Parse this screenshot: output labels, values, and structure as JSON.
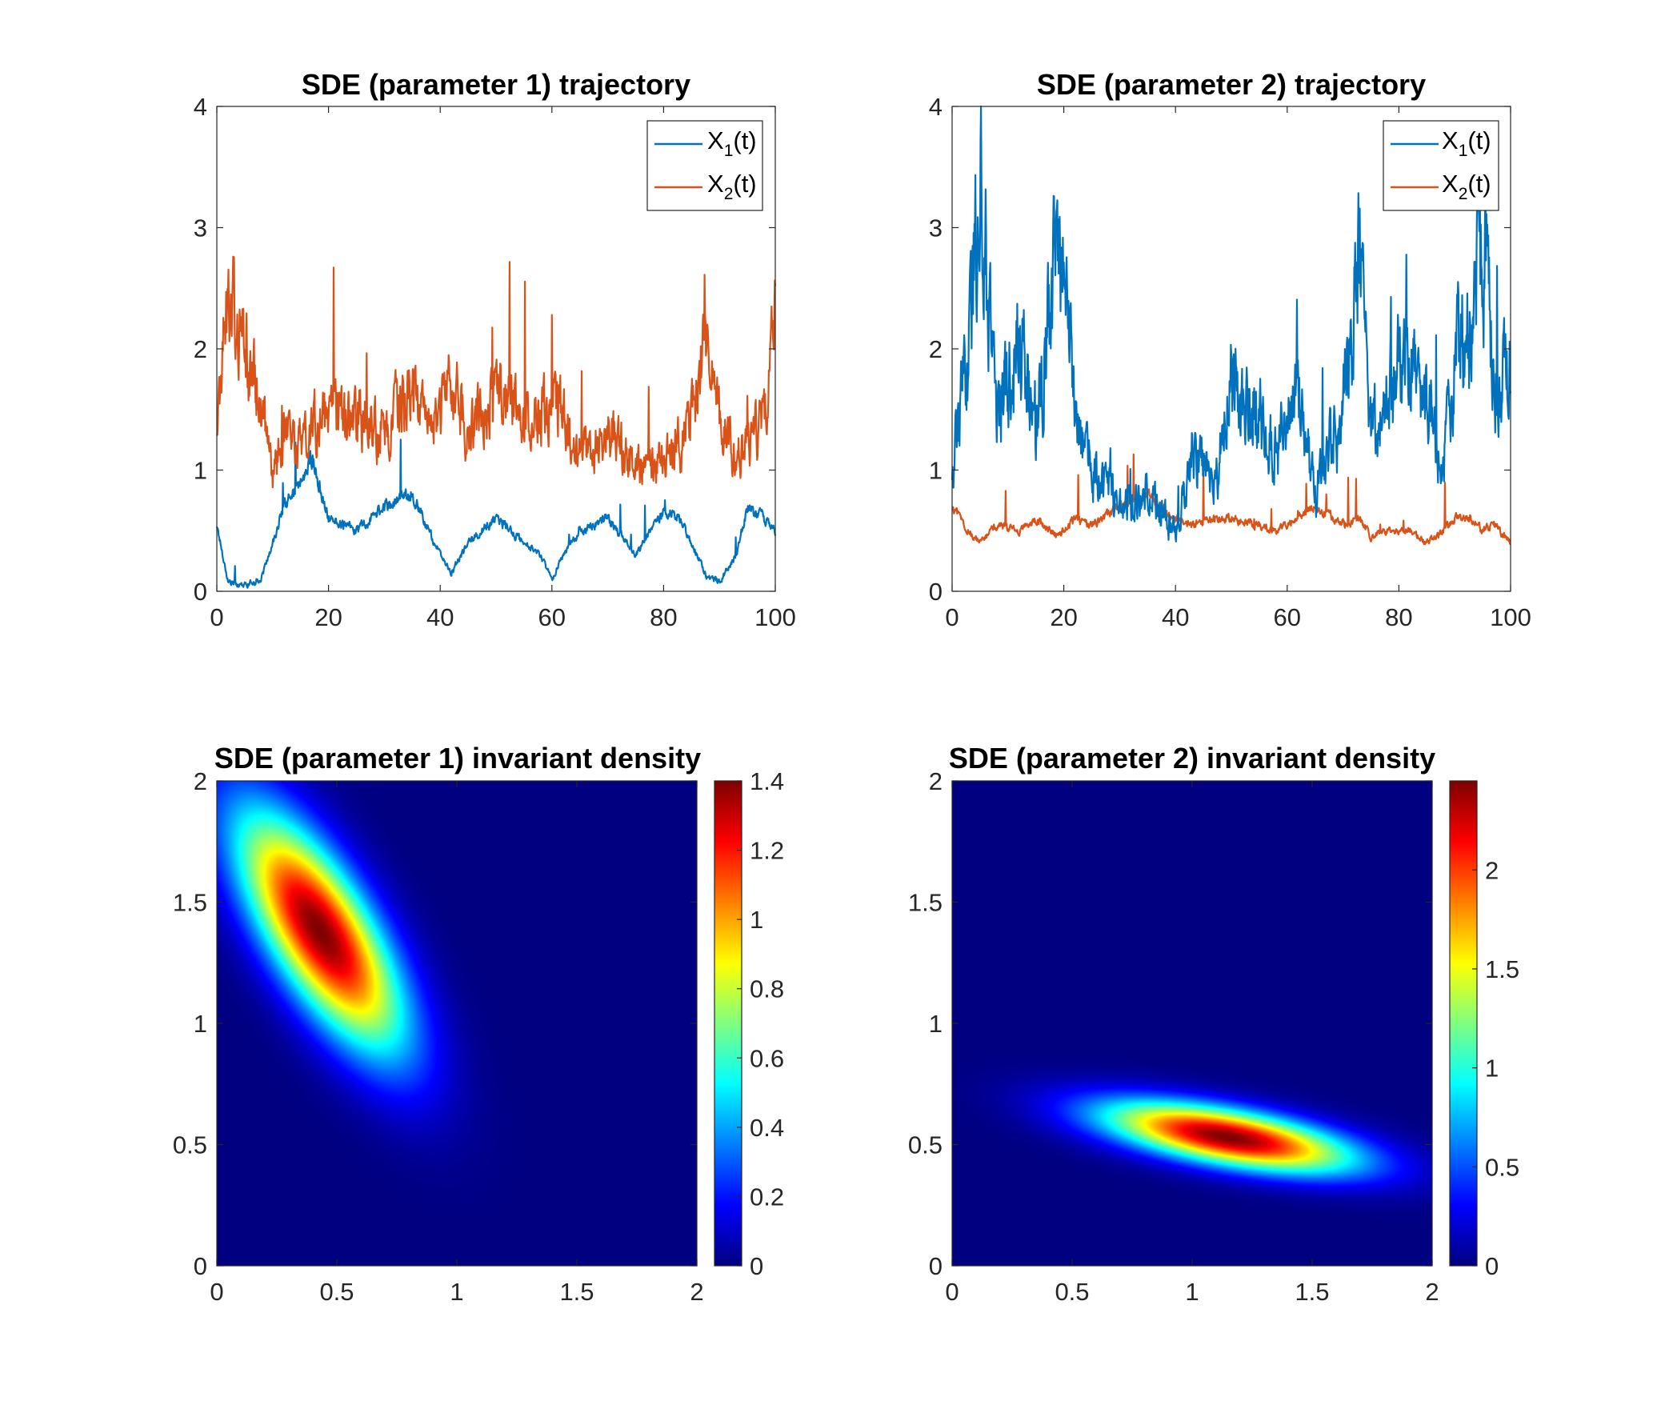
{
  "chart_data": [
    {
      "type": "line",
      "title": "SDE (parameter 1) trajectory",
      "xlim": [
        0,
        100
      ],
      "ylim": [
        0,
        4
      ],
      "xticks": [
        0,
        20,
        40,
        60,
        80,
        100
      ],
      "yticks": [
        0,
        1,
        2,
        3,
        4
      ],
      "legend": {
        "position": "top-right",
        "entries": [
          "X_1(t)",
          "X_2(t)"
        ]
      },
      "x": [
        0,
        2,
        5,
        8,
        10,
        12,
        15,
        17,
        20,
        25,
        30,
        35,
        38,
        40,
        42,
        45,
        50,
        55,
        58,
        60,
        62,
        65,
        70,
        75,
        80,
        83,
        86,
        88,
        90,
        93,
        95,
        98,
        100
      ],
      "series": [
        {
          "name": "X_1(t)",
          "color": "#0072BD",
          "values": [
            0.55,
            0.08,
            0.05,
            0.1,
            0.4,
            0.7,
            0.9,
            1.1,
            0.6,
            0.5,
            0.7,
            0.8,
            0.5,
            0.3,
            0.15,
            0.4,
            0.6,
            0.4,
            0.3,
            0.1,
            0.3,
            0.5,
            0.6,
            0.3,
            0.65,
            0.6,
            0.3,
            0.1,
            0.08,
            0.3,
            0.7,
            0.6,
            0.5
          ]
        },
        {
          "name": "X_2(t)",
          "color": "#D95319",
          "values": [
            1.4,
            2.5,
            2.0,
            1.5,
            1.0,
            1.3,
            1.2,
            1.4,
            1.4,
            1.5,
            1.3,
            1.7,
            1.3,
            1.4,
            1.8,
            1.3,
            1.6,
            1.4,
            1.5,
            1.6,
            1.5,
            1.1,
            1.3,
            1.0,
            1.1,
            1.2,
            1.6,
            2.3,
            1.4,
            1.1,
            1.2,
            1.4,
            2.3
          ]
        }
      ]
    },
    {
      "type": "line",
      "title": "SDE (parameter 2) trajectory",
      "xlim": [
        0,
        100
      ],
      "ylim": [
        0,
        4
      ],
      "xticks": [
        0,
        20,
        40,
        60,
        80,
        100
      ],
      "yticks": [
        0,
        1,
        2,
        3,
        4
      ],
      "legend": {
        "position": "top-right",
        "entries": [
          "X_1(t)",
          "X_2(t)"
        ]
      },
      "x": [
        0,
        3,
        5,
        8,
        12,
        15,
        19,
        22,
        25,
        30,
        35,
        40,
        43,
        47,
        50,
        55,
        58,
        62,
        65,
        70,
        73,
        75,
        78,
        82,
        85,
        88,
        90,
        93,
        95,
        97,
        100
      ],
      "series": [
        {
          "name": "X_1(t)",
          "color": "#0072BD",
          "values": [
            1.0,
            2.0,
            3.5,
            1.5,
            2.0,
            1.3,
            3.0,
            1.6,
            1.0,
            0.7,
            0.8,
            0.5,
            1.2,
            0.9,
            1.7,
            1.5,
            1.1,
            1.6,
            0.8,
            1.5,
            2.8,
            1.3,
            1.6,
            2.0,
            1.6,
            1.0,
            2.0,
            2.2,
            3.1,
            1.7,
            1.9
          ]
        },
        {
          "name": "X_2(t)",
          "color": "#D95319",
          "values": [
            0.7,
            0.5,
            0.4,
            0.55,
            0.5,
            0.6,
            0.45,
            0.6,
            0.55,
            0.7,
            0.8,
            0.6,
            0.55,
            0.6,
            0.6,
            0.55,
            0.5,
            0.6,
            0.7,
            0.55,
            0.6,
            0.45,
            0.5,
            0.5,
            0.4,
            0.5,
            0.6,
            0.6,
            0.5,
            0.55,
            0.4
          ]
        }
      ]
    },
    {
      "type": "heatmap",
      "title": "SDE (parameter 1) invariant density",
      "xlim": [
        0,
        2
      ],
      "ylim": [
        0,
        2
      ],
      "xticks": [
        "0",
        "0.5",
        "1",
        "1.5",
        "2"
      ],
      "yticks": [
        "0",
        "0.5",
        "1",
        "1.5",
        "2"
      ],
      "colormap": "jet",
      "clim": [
        0,
        1.4
      ],
      "colorbar_ticks": [
        "0",
        "0.2",
        "0.4",
        "0.6",
        "0.8",
        "1",
        "1.2",
        "1.4"
      ],
      "peak": {
        "x": 0.43,
        "y": 1.38,
        "value": 1.4
      },
      "shape": {
        "sx": 0.24,
        "sy": 0.34,
        "rho": -0.72
      }
    },
    {
      "type": "heatmap",
      "title": "SDE (parameter 2) invariant density",
      "xlim": [
        0,
        2
      ],
      "ylim": [
        0,
        2
      ],
      "xticks": [
        "0",
        "0.5",
        "1",
        "1.5",
        "2"
      ],
      "yticks": [
        "0",
        "0.5",
        "1",
        "1.5",
        "2"
      ],
      "colormap": "jet",
      "clim": [
        0,
        2.45
      ],
      "colorbar_ticks": [
        "0",
        "0.5",
        "1",
        "1.5",
        "2"
      ],
      "peak": {
        "x": 1.15,
        "y": 0.53,
        "value": 2.45
      },
      "shape": {
        "sx": 0.36,
        "sy": 0.1,
        "rho": -0.6
      }
    }
  ]
}
